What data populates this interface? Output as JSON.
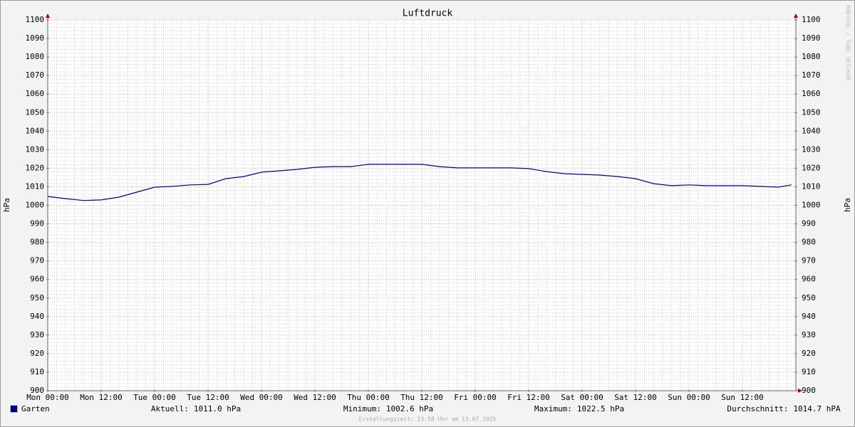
{
  "chart_data": {
    "type": "line",
    "title": "Luftdruck",
    "ylabel": "hPa",
    "y2label": "hPa",
    "watermark": "RRDTOOL / TOBI OETIKER",
    "footer": "Erstellungszeit: 23:58 Uhr am 13.07.2025",
    "xlim": [
      0,
      168
    ],
    "xticks": [
      {
        "value": 0,
        "label": "Mon 00:00"
      },
      {
        "value": 12,
        "label": "Mon 12:00"
      },
      {
        "value": 24,
        "label": "Tue 00:00"
      },
      {
        "value": 36,
        "label": "Tue 12:00"
      },
      {
        "value": 48,
        "label": "Wed 00:00"
      },
      {
        "value": 60,
        "label": "Wed 12:00"
      },
      {
        "value": 72,
        "label": "Thu 00:00"
      },
      {
        "value": 84,
        "label": "Thu 12:00"
      },
      {
        "value": 96,
        "label": "Fri 00:00"
      },
      {
        "value": 108,
        "label": "Fri 12:00"
      },
      {
        "value": 120,
        "label": "Sat 00:00"
      },
      {
        "value": 132,
        "label": "Sat 12:00"
      },
      {
        "value": 144,
        "label": "Sun 00:00"
      },
      {
        "value": 156,
        "label": "Sun 12:00"
      }
    ],
    "ylim": [
      900,
      1100
    ],
    "yticks": [
      900,
      910,
      920,
      930,
      940,
      950,
      960,
      970,
      980,
      990,
      1000,
      1010,
      1020,
      1030,
      1040,
      1050,
      1060,
      1070,
      1080,
      1090,
      1100
    ],
    "grid": true,
    "x": [
      0,
      4,
      8,
      12,
      16,
      20,
      24,
      28,
      32,
      36,
      40,
      44,
      48,
      52,
      56,
      60,
      64,
      68,
      72,
      76,
      80,
      84,
      88,
      92,
      96,
      100,
      104,
      108,
      112,
      116,
      120,
      124,
      128,
      132,
      136,
      140,
      144,
      148,
      152,
      156,
      160,
      164,
      167
    ],
    "series": [
      {
        "name": "Garten",
        "color": "#000090",
        "values": [
          1004.8,
          1003.6,
          1002.6,
          1002.9,
          1004.4,
          1007.1,
          1009.8,
          1010.2,
          1011.0,
          1011.3,
          1014.4,
          1015.5,
          1017.9,
          1018.6,
          1019.4,
          1020.5,
          1020.9,
          1020.9,
          1022.1,
          1022.1,
          1022.1,
          1022.1,
          1020.9,
          1020.2,
          1020.2,
          1020.2,
          1020.2,
          1019.8,
          1018.2,
          1017.1,
          1016.7,
          1016.3,
          1015.5,
          1014.4,
          1011.7,
          1010.6,
          1011.0,
          1010.6,
          1010.6,
          1010.6,
          1010.2,
          1009.8,
          1011.0
        ]
      }
    ],
    "stats": [
      {
        "label": "Aktuell:",
        "value": "1011.0 hPa"
      },
      {
        "label": "Minimum:",
        "value": "1002.6 hPa"
      },
      {
        "label": "Maximum:",
        "value": "1022.5 hPa"
      },
      {
        "label": "Durchschnitt:",
        "value": "1014.7 hPA"
      }
    ]
  }
}
